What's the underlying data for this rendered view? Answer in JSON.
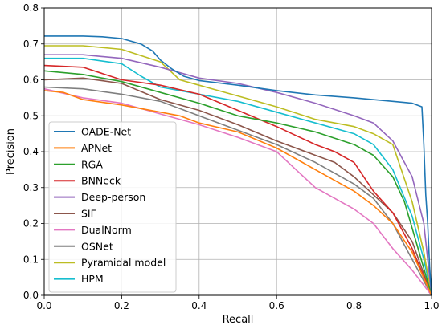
{
  "chart_data": {
    "type": "line",
    "xlabel": "Recall",
    "ylabel": "Precision",
    "xlim": [
      0,
      1
    ],
    "ylim": [
      0,
      0.8
    ],
    "xticks": [
      "0.0",
      "0.2",
      "0.4",
      "0.6",
      "0.8",
      "1.0"
    ],
    "yticks": [
      "0.0",
      "0.1",
      "0.2",
      "0.3",
      "0.4",
      "0.5",
      "0.6",
      "0.7",
      "0.8"
    ],
    "grid": true,
    "legend_position": "lower-left",
    "series": [
      {
        "name": "OADE-Net",
        "color": "#1f77b4",
        "x": [
          0,
          0.1,
          0.15,
          0.2,
          0.25,
          0.28,
          0.3,
          0.33,
          0.36,
          0.4,
          0.5,
          0.6,
          0.7,
          0.8,
          0.9,
          0.95,
          0.975,
          0.98,
          0.985,
          0.99,
          0.995,
          1.0
        ],
        "y": [
          0.722,
          0.722,
          0.72,
          0.715,
          0.7,
          0.68,
          0.655,
          0.63,
          0.61,
          0.598,
          0.585,
          0.57,
          0.558,
          0.55,
          0.54,
          0.535,
          0.525,
          0.42,
          0.28,
          0.2,
          0.08,
          0.0
        ]
      },
      {
        "name": "APNet",
        "color": "#ff7f0e",
        "x": [
          0,
          0.05,
          0.1,
          0.2,
          0.3,
          0.35,
          0.4,
          0.5,
          0.6,
          0.7,
          0.8,
          0.85,
          0.9,
          0.95,
          1.0
        ],
        "y": [
          0.57,
          0.565,
          0.545,
          0.53,
          0.51,
          0.5,
          0.48,
          0.455,
          0.41,
          0.35,
          0.29,
          0.25,
          0.2,
          0.12,
          0.0
        ]
      },
      {
        "name": "RGA",
        "color": "#2ca02c",
        "x": [
          0,
          0.1,
          0.2,
          0.3,
          0.4,
          0.5,
          0.6,
          0.7,
          0.8,
          0.85,
          0.9,
          0.93,
          0.96,
          1.0
        ],
        "y": [
          0.625,
          0.615,
          0.595,
          0.565,
          0.535,
          0.5,
          0.48,
          0.455,
          0.42,
          0.39,
          0.33,
          0.26,
          0.15,
          0.0
        ]
      },
      {
        "name": "BNNeck",
        "color": "#d62728",
        "x": [
          0,
          0.1,
          0.2,
          0.3,
          0.4,
          0.5,
          0.6,
          0.7,
          0.75,
          0.8,
          0.85,
          0.9,
          0.95,
          1.0
        ],
        "y": [
          0.64,
          0.635,
          0.6,
          0.585,
          0.56,
          0.515,
          0.47,
          0.42,
          0.4,
          0.37,
          0.29,
          0.23,
          0.13,
          0.0
        ]
      },
      {
        "name": "Deep-person",
        "color": "#9467bd",
        "x": [
          0,
          0.1,
          0.2,
          0.3,
          0.4,
          0.5,
          0.6,
          0.7,
          0.8,
          0.85,
          0.9,
          0.95,
          0.98,
          1.0
        ],
        "y": [
          0.67,
          0.67,
          0.66,
          0.635,
          0.605,
          0.59,
          0.565,
          0.535,
          0.5,
          0.48,
          0.43,
          0.33,
          0.2,
          0.0
        ]
      },
      {
        "name": "SIF",
        "color": "#8c564b",
        "x": [
          0,
          0.1,
          0.2,
          0.3,
          0.4,
          0.5,
          0.6,
          0.7,
          0.75,
          0.8,
          0.85,
          0.9,
          0.95,
          1.0
        ],
        "y": [
          0.6,
          0.605,
          0.59,
          0.545,
          0.515,
          0.475,
          0.43,
          0.39,
          0.37,
          0.33,
          0.28,
          0.23,
          0.15,
          0.0
        ]
      },
      {
        "name": "DualNorm",
        "color": "#e377c2",
        "x": [
          0,
          0.1,
          0.2,
          0.3,
          0.4,
          0.5,
          0.6,
          0.65,
          0.7,
          0.75,
          0.8,
          0.85,
          0.9,
          0.95,
          1.0
        ],
        "y": [
          0.575,
          0.55,
          0.535,
          0.505,
          0.475,
          0.44,
          0.4,
          0.35,
          0.3,
          0.27,
          0.24,
          0.2,
          0.13,
          0.07,
          0.0
        ]
      },
      {
        "name": "OSNet",
        "color": "#7f7f7f",
        "x": [
          0,
          0.1,
          0.2,
          0.3,
          0.4,
          0.5,
          0.6,
          0.7,
          0.8,
          0.85,
          0.9,
          0.95,
          1.0
        ],
        "y": [
          0.58,
          0.575,
          0.56,
          0.54,
          0.5,
          0.46,
          0.42,
          0.37,
          0.31,
          0.27,
          0.2,
          0.1,
          0.0
        ]
      },
      {
        "name": "Pyramidal model",
        "color": "#bcbd22",
        "x": [
          0,
          0.1,
          0.2,
          0.3,
          0.35,
          0.4,
          0.5,
          0.6,
          0.7,
          0.8,
          0.85,
          0.9,
          0.95,
          0.98,
          1.0
        ],
        "y": [
          0.695,
          0.695,
          0.685,
          0.65,
          0.6,
          0.585,
          0.555,
          0.525,
          0.49,
          0.47,
          0.45,
          0.42,
          0.26,
          0.12,
          0.0
        ]
      },
      {
        "name": "HPM",
        "color": "#17becf",
        "x": [
          0,
          0.1,
          0.2,
          0.25,
          0.3,
          0.4,
          0.5,
          0.6,
          0.7,
          0.8,
          0.85,
          0.9,
          0.95,
          0.98,
          1.0
        ],
        "y": [
          0.66,
          0.66,
          0.645,
          0.61,
          0.58,
          0.56,
          0.54,
          0.51,
          0.48,
          0.45,
          0.42,
          0.35,
          0.22,
          0.1,
          0.0
        ]
      }
    ]
  }
}
